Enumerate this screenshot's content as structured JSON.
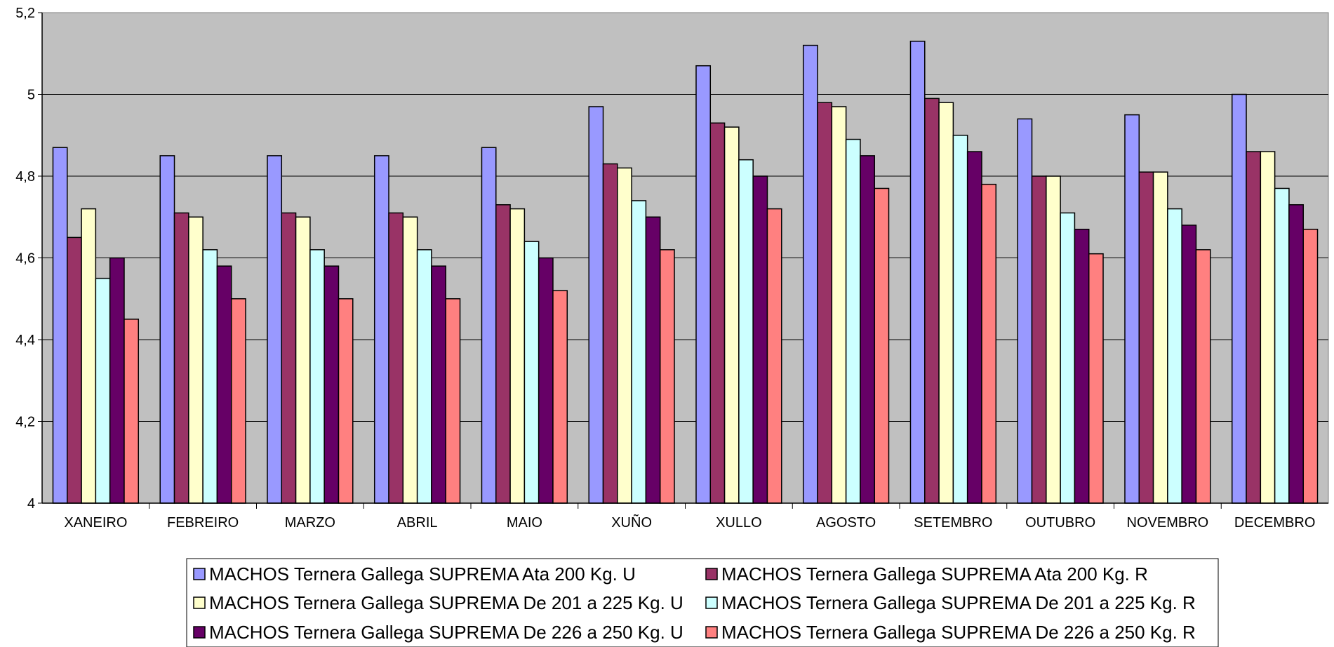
{
  "chart_data": {
    "type": "bar",
    "title": "",
    "xlabel": "",
    "ylabel": "",
    "ylim": [
      4,
      5.2
    ],
    "yticks": [
      "4",
      "4,2",
      "4,4",
      "4,6",
      "4,8",
      "5",
      "5,2"
    ],
    "ytick_values": [
      4,
      4.2,
      4.4,
      4.6,
      4.8,
      5,
      5.2
    ],
    "grid": true,
    "legend_position": "bottom",
    "plot_background": "#C0C0C0",
    "categories": [
      "XANEIRO",
      "FEBREIRO",
      "MARZO",
      "ABRIL",
      "MAIO",
      "XUÑO",
      "XULLO",
      "AGOSTO",
      "SETEMBRO",
      "OUTUBRO",
      "NOVEMBRO",
      "DECEMBRO"
    ],
    "series": [
      {
        "name": "MACHOS Ternera Gallega SUPREMA Ata 200 Kg. U",
        "color": "#9999FF",
        "values": [
          4.87,
          4.85,
          4.85,
          4.85,
          4.87,
          4.97,
          5.07,
          5.12,
          5.13,
          4.94,
          4.95,
          5.0
        ]
      },
      {
        "name": "MACHOS Ternera Gallega SUPREMA Ata 200 Kg. R",
        "color": "#993366",
        "values": [
          4.65,
          4.71,
          4.71,
          4.71,
          4.73,
          4.83,
          4.93,
          4.98,
          4.99,
          4.8,
          4.81,
          4.86
        ]
      },
      {
        "name": "MACHOS Ternera Gallega SUPREMA De 201 a 225 Kg. U",
        "color": "#FFFFCC",
        "values": [
          4.72,
          4.7,
          4.7,
          4.7,
          4.72,
          4.82,
          4.92,
          4.97,
          4.98,
          4.8,
          4.81,
          4.86
        ]
      },
      {
        "name": "MACHOS Ternera Gallega SUPREMA De 201 a 225 Kg. R",
        "color": "#CCFFFF",
        "values": [
          4.55,
          4.62,
          4.62,
          4.62,
          4.64,
          4.74,
          4.84,
          4.89,
          4.9,
          4.71,
          4.72,
          4.77
        ]
      },
      {
        "name": "MACHOS Ternera Gallega SUPREMA De 226 a 250 Kg. U",
        "color": "#660066",
        "values": [
          4.6,
          4.58,
          4.58,
          4.58,
          4.6,
          4.7,
          4.8,
          4.85,
          4.86,
          4.67,
          4.68,
          4.73
        ]
      },
      {
        "name": "MACHOS Ternera Gallega SUPREMA De 226 a 250 Kg. R",
        "color": "#FF8080",
        "values": [
          4.45,
          4.5,
          4.5,
          4.5,
          4.52,
          4.62,
          4.72,
          4.77,
          4.78,
          4.61,
          4.62,
          4.67
        ]
      }
    ]
  }
}
